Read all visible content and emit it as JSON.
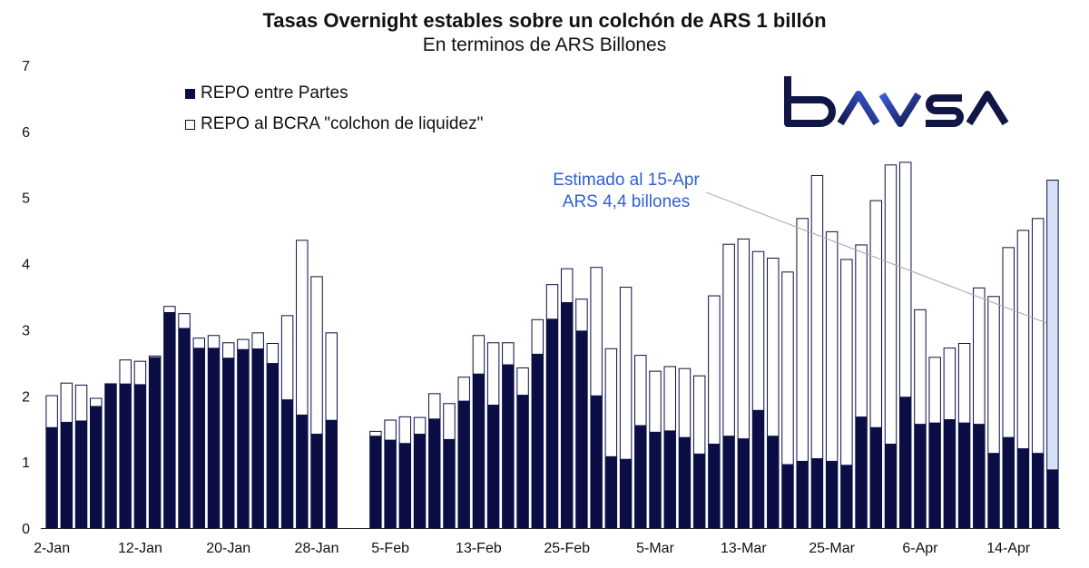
{
  "header": {
    "title": "Tasas Overnight estables sobre un colchón de ARS 1 billón",
    "subtitle": "En terminos de ARS Billones"
  },
  "legend": {
    "series1": "REPO entre Partes",
    "series2": "REPO al BCRA \"colchon de liquidez\""
  },
  "annotation": {
    "line1": "Estimado al 15-Apr",
    "line2": "ARS 4,4 billones"
  },
  "logo": {
    "text": "BAVSA",
    "color": "#101646",
    "accent": "#3a5cdb"
  },
  "colors": {
    "repo_partes": "#0a0e45",
    "repo_bcra": "#ffffff",
    "estimate": "#d6e0f7",
    "bar_outline": "#0a0e45",
    "annotation": "#2f5fd6",
    "leader": "#b0b0b0"
  },
  "chart_data": {
    "type": "bar",
    "stacked": true,
    "ylim": [
      0,
      7
    ],
    "yticks": [
      0,
      1,
      2,
      3,
      4,
      5,
      6,
      7
    ],
    "grid": false,
    "legend_position": "top-left",
    "xtick_labels": [
      {
        "index": 0,
        "label": "2-Jan"
      },
      {
        "index": 6,
        "label": "12-Jan"
      },
      {
        "index": 12,
        "label": "20-Jan"
      },
      {
        "index": 18,
        "label": "28-Jan"
      },
      {
        "index": 23,
        "label": "5-Feb"
      },
      {
        "index": 29,
        "label": "13-Feb"
      },
      {
        "index": 35,
        "label": "25-Feb"
      },
      {
        "index": 41,
        "label": "5-Mar"
      },
      {
        "index": 47,
        "label": "13-Mar"
      },
      {
        "index": 53,
        "label": "25-Mar"
      },
      {
        "index": 59,
        "label": "6-Apr"
      },
      {
        "index": 65,
        "label": "14-Apr"
      }
    ],
    "series": [
      {
        "name": "REPO entre Partes",
        "values": [
          1.52,
          1.6,
          1.62,
          1.84,
          2.17,
          2.18,
          2.17,
          2.58,
          3.26,
          3.02,
          2.72,
          2.72,
          2.57,
          2.7,
          2.71,
          2.49,
          1.94,
          1.71,
          1.42,
          1.63,
          null,
          null,
          1.39,
          1.33,
          1.28,
          1.42,
          1.65,
          1.34,
          1.92,
          2.33,
          1.86,
          2.47,
          2.01,
          2.63,
          3.16,
          3.41,
          2.98,
          2.0,
          1.08,
          1.04,
          1.55,
          1.45,
          1.47,
          1.37,
          1.12,
          1.27,
          1.39,
          1.35,
          1.78,
          1.39,
          0.96,
          1.01,
          1.05,
          1.01,
          0.95,
          1.68,
          1.52,
          1.27,
          1.98,
          1.57,
          1.59,
          1.64,
          1.59,
          1.57,
          1.13,
          1.37,
          1.2,
          1.13,
          0.88
        ]
      },
      {
        "name": "REPO al BCRA \"colchon de liquidez\"",
        "values": [
          0.49,
          0.6,
          0.55,
          0.13,
          0.02,
          0.37,
          0.36,
          0.03,
          0.1,
          0.23,
          0.16,
          0.2,
          0.24,
          0.16,
          0.25,
          0.31,
          1.28,
          2.65,
          2.39,
          1.33,
          null,
          null,
          0.08,
          0.31,
          0.41,
          0.26,
          0.39,
          0.55,
          0.37,
          0.59,
          0.95,
          0.34,
          0.42,
          0.53,
          0.53,
          0.52,
          0.49,
          1.95,
          1.64,
          2.61,
          1.07,
          0.93,
          0.98,
          1.05,
          1.19,
          2.25,
          2.91,
          3.03,
          2.41,
          2.7,
          2.92,
          3.68,
          4.29,
          3.48,
          3.12,
          2.61,
          3.44,
          4.23,
          3.56,
          1.74,
          1.0,
          1.09,
          1.21,
          2.07,
          2.38,
          2.88,
          3.31,
          3.56,
          4.39
        ]
      }
    ],
    "estimate_index": 68
  }
}
